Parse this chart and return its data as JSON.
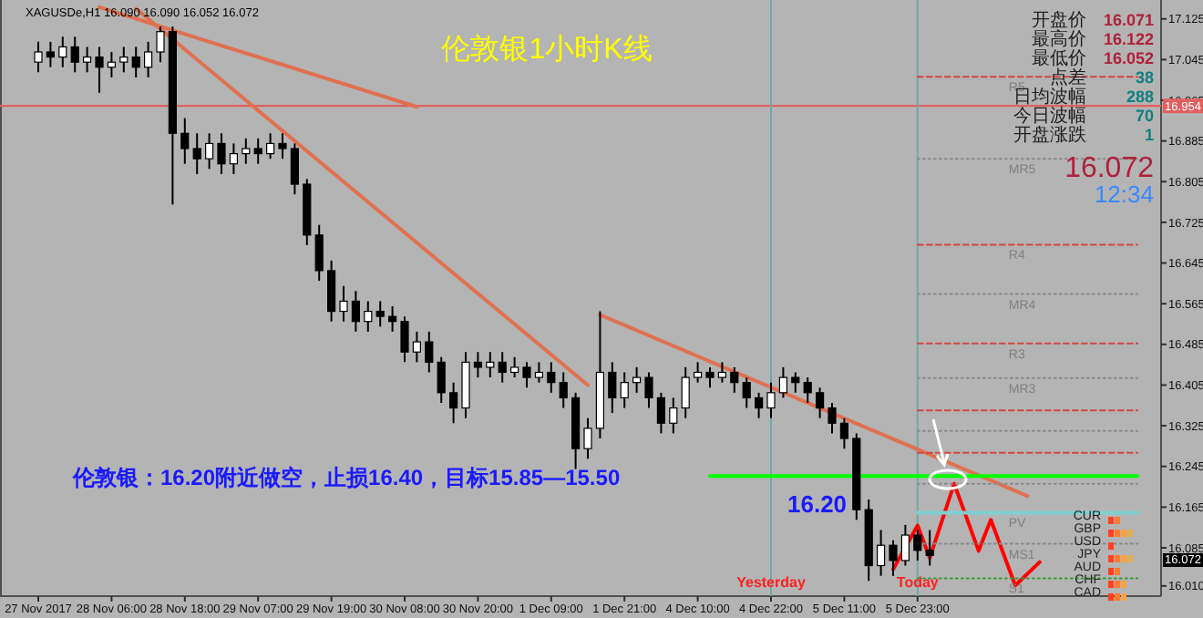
{
  "chart_data": {
    "type": "candlestick",
    "title": "伦敦银1小时K线",
    "categories": [
      "27 Nov 2017",
      null,
      null,
      null,
      null,
      null,
      "28 Nov 06:00",
      null,
      null,
      null,
      null,
      null,
      "28 Nov 18:00",
      null,
      null,
      null,
      null,
      null,
      "29 Nov 07:00",
      null,
      null,
      null,
      null,
      null,
      "29 Nov 19:00",
      null,
      null,
      null,
      null,
      null,
      "30 Nov 08:00",
      null,
      null,
      null,
      null,
      null,
      "30 Nov 20:00",
      null,
      null,
      null,
      null,
      null,
      "1 Dec 09:00",
      null,
      null,
      null,
      null,
      null,
      "1 Dec 21:00",
      null,
      null,
      null,
      null,
      null,
      "4 Dec 10:00",
      null,
      null,
      null,
      null,
      null,
      "4 Dec 22:00",
      null,
      null,
      null,
      null,
      null,
      "5 Dec 11:00",
      null,
      null,
      null,
      null,
      null,
      "5 Dec 23:00",
      null,
      null,
      null,
      null,
      null,
      null,
      null,
      null,
      null,
      null,
      null,
      null,
      null,
      null,
      null,
      null,
      null,
      null
    ],
    "ohlc": [
      [
        17.04,
        17.08,
        17.02,
        17.06
      ],
      [
        17.06,
        17.08,
        17.03,
        17.05
      ],
      [
        17.05,
        17.09,
        17.03,
        17.07
      ],
      [
        17.07,
        17.09,
        17.02,
        17.04
      ],
      [
        17.04,
        17.07,
        17.02,
        17.05
      ],
      [
        17.05,
        17.07,
        16.98,
        17.03
      ],
      [
        17.03,
        17.06,
        17.01,
        17.04
      ],
      [
        17.04,
        17.07,
        17.02,
        17.05
      ],
      [
        17.05,
        17.07,
        17.01,
        17.03
      ],
      [
        17.03,
        17.08,
        17.01,
        17.06
      ],
      [
        17.06,
        17.11,
        17.04,
        17.1
      ],
      [
        17.1,
        17.11,
        16.76,
        16.9
      ],
      [
        16.9,
        16.93,
        16.84,
        16.87
      ],
      [
        16.87,
        16.9,
        16.82,
        16.85
      ],
      [
        16.85,
        16.9,
        16.83,
        16.88
      ],
      [
        16.88,
        16.9,
        16.82,
        16.84
      ],
      [
        16.84,
        16.88,
        16.82,
        16.86
      ],
      [
        16.86,
        16.89,
        16.84,
        16.87
      ],
      [
        16.87,
        16.89,
        16.84,
        16.86
      ],
      [
        16.86,
        16.9,
        16.85,
        16.88
      ],
      [
        16.88,
        16.9,
        16.85,
        16.87
      ],
      [
        16.87,
        16.88,
        16.78,
        16.8
      ],
      [
        16.8,
        16.81,
        16.68,
        16.7
      ],
      [
        16.7,
        16.72,
        16.61,
        16.63
      ],
      [
        16.63,
        16.65,
        16.53,
        16.55
      ],
      [
        16.55,
        16.6,
        16.53,
        16.57
      ],
      [
        16.57,
        16.59,
        16.51,
        16.53
      ],
      [
        16.53,
        16.57,
        16.51,
        16.55
      ],
      [
        16.55,
        16.57,
        16.52,
        16.54
      ],
      [
        16.54,
        16.56,
        16.51,
        16.53
      ],
      [
        16.53,
        16.54,
        16.45,
        16.47
      ],
      [
        16.47,
        16.51,
        16.45,
        16.49
      ],
      [
        16.49,
        16.51,
        16.43,
        16.45
      ],
      [
        16.45,
        16.46,
        16.37,
        16.39
      ],
      [
        16.39,
        16.41,
        16.33,
        16.36
      ],
      [
        16.36,
        16.47,
        16.34,
        16.45
      ],
      [
        16.45,
        16.47,
        16.42,
        16.44
      ],
      [
        16.44,
        16.47,
        16.42,
        16.45
      ],
      [
        16.45,
        16.47,
        16.41,
        16.43
      ],
      [
        16.43,
        16.46,
        16.42,
        16.44
      ],
      [
        16.44,
        16.45,
        16.4,
        16.42
      ],
      [
        16.42,
        16.45,
        16.41,
        16.43
      ],
      [
        16.43,
        16.45,
        16.39,
        16.41
      ],
      [
        16.41,
        16.43,
        16.36,
        16.38
      ],
      [
        16.38,
        16.39,
        16.24,
        16.28
      ],
      [
        16.28,
        16.34,
        16.26,
        16.32
      ],
      [
        16.32,
        16.55,
        16.3,
        16.43
      ],
      [
        16.43,
        16.45,
        16.35,
        16.38
      ],
      [
        16.38,
        16.43,
        16.36,
        16.41
      ],
      [
        16.41,
        16.44,
        16.39,
        16.42
      ],
      [
        16.42,
        16.43,
        16.36,
        16.38
      ],
      [
        16.38,
        16.39,
        16.31,
        16.33
      ],
      [
        16.33,
        16.38,
        16.31,
        16.36
      ],
      [
        16.36,
        16.44,
        16.34,
        16.42
      ],
      [
        16.42,
        16.45,
        16.41,
        16.43
      ],
      [
        16.43,
        16.44,
        16.4,
        16.42
      ],
      [
        16.42,
        16.45,
        16.41,
        16.43
      ],
      [
        16.43,
        16.44,
        16.39,
        16.41
      ],
      [
        16.41,
        16.42,
        16.36,
        16.38
      ],
      [
        16.38,
        16.39,
        16.34,
        16.36
      ],
      [
        16.36,
        16.41,
        16.34,
        16.39
      ],
      [
        16.39,
        16.44,
        16.38,
        16.42
      ],
      [
        16.42,
        16.43,
        16.39,
        16.41
      ],
      [
        16.41,
        16.42,
        16.37,
        16.39
      ],
      [
        16.39,
        16.4,
        16.34,
        16.36
      ],
      [
        16.36,
        16.37,
        16.31,
        16.33
      ],
      [
        16.33,
        16.34,
        16.28,
        16.3
      ],
      [
        16.3,
        16.31,
        16.14,
        16.16
      ],
      [
        16.16,
        16.18,
        16.02,
        16.05
      ],
      [
        16.05,
        16.12,
        16.03,
        16.09
      ],
      [
        16.09,
        16.1,
        16.03,
        16.06
      ],
      [
        16.06,
        16.13,
        16.05,
        16.11
      ],
      [
        16.11,
        16.12,
        16.06,
        16.08
      ],
      [
        16.08,
        16.12,
        16.05,
        16.07
      ],
      null,
      null,
      null,
      null,
      null,
      null,
      null,
      null,
      null,
      null,
      null,
      null,
      null,
      null,
      null,
      null,
      null
    ],
    "series": [
      {
        "type": "line",
        "color": "#e07050",
        "line_style": "solid",
        "values": [
          null,
          null,
          null,
          null,
          null,
          17.148,
          null,
          null,
          null,
          null,
          null,
          null,
          null,
          null,
          null,
          null,
          null,
          null,
          null,
          null,
          null,
          null,
          null,
          null,
          null,
          null,
          null,
          null,
          null,
          null,
          null,
          16.952,
          null,
          null,
          null,
          null,
          null,
          null,
          null,
          null,
          null,
          null,
          null,
          null,
          null,
          null,
          null,
          null,
          null,
          null,
          null,
          null,
          null,
          null,
          null,
          null,
          null,
          null,
          null,
          null,
          null,
          null,
          null,
          null,
          null,
          null,
          null,
          null,
          null,
          null,
          null,
          null,
          null,
          null,
          null,
          null,
          null,
          null,
          null,
          null,
          null,
          null,
          null,
          null,
          null,
          null,
          null,
          null,
          null,
          null,
          null
        ]
      },
      {
        "type": "line",
        "color": "#e07050",
        "line_style": "solid",
        "values": [
          null,
          null,
          null,
          null,
          null,
          null,
          null,
          null,
          17.145,
          null,
          null,
          null,
          null,
          null,
          null,
          null,
          null,
          null,
          null,
          null,
          null,
          null,
          null,
          null,
          null,
          null,
          null,
          null,
          null,
          null,
          null,
          null,
          null,
          null,
          null,
          null,
          null,
          null,
          null,
          null,
          null,
          null,
          null,
          null,
          null,
          16.405,
          null,
          null,
          null,
          null,
          null,
          null,
          null,
          null,
          null,
          null,
          null,
          null,
          null,
          null,
          null,
          null,
          null,
          null,
          null,
          null,
          null,
          null,
          null,
          null,
          null,
          null,
          null,
          null,
          null,
          null,
          null,
          null,
          null,
          null,
          null,
          null,
          null,
          null,
          null,
          null,
          null,
          null,
          null,
          null,
          null
        ]
      },
      {
        "type": "line",
        "color": "#e07050",
        "line_style": "solid",
        "values": [
          null,
          null,
          null,
          null,
          null,
          null,
          null,
          null,
          null,
          null,
          null,
          null,
          null,
          null,
          null,
          null,
          null,
          null,
          null,
          null,
          null,
          null,
          null,
          null,
          null,
          null,
          null,
          null,
          null,
          null,
          null,
          null,
          null,
          null,
          null,
          null,
          null,
          null,
          null,
          null,
          null,
          null,
          null,
          null,
          null,
          null,
          16.543,
          null,
          null,
          null,
          null,
          null,
          null,
          null,
          null,
          null,
          null,
          null,
          null,
          null,
          null,
          null,
          null,
          null,
          null,
          null,
          null,
          null,
          null,
          null,
          null,
          null,
          null,
          null,
          null,
          null,
          null,
          null,
          null,
          null,
          null,
          16.187,
          null,
          null,
          null,
          null,
          null,
          null,
          null,
          null,
          null
        ]
      },
      {
        "type": "line",
        "color": "#00ff00",
        "line_style": "solid",
        "values": [
          null,
          null,
          null,
          null,
          null,
          null,
          null,
          null,
          null,
          null,
          null,
          null,
          null,
          null,
          null,
          null,
          null,
          null,
          null,
          null,
          null,
          null,
          null,
          null,
          null,
          null,
          null,
          null,
          null,
          null,
          null,
          null,
          null,
          null,
          null,
          null,
          null,
          null,
          null,
          null,
          null,
          null,
          null,
          null,
          null,
          null,
          null,
          null,
          null,
          null,
          null,
          null,
          null,
          null,
          null,
          16.226,
          null,
          null,
          null,
          null,
          null,
          null,
          null,
          null,
          null,
          null,
          null,
          null,
          null,
          null,
          null,
          null,
          null,
          null,
          null,
          null,
          null,
          null,
          null,
          null,
          null,
          null,
          null,
          null,
          null,
          null,
          null,
          null,
          null,
          null,
          16.226
        ]
      },
      {
        "type": "line",
        "color": "#ff0000",
        "line_style": "solid",
        "values": [
          null,
          null,
          null,
          null,
          null,
          null,
          null,
          null,
          null,
          null,
          null,
          null,
          null,
          null,
          null,
          null,
          null,
          null,
          null,
          null,
          null,
          null,
          null,
          null,
          null,
          null,
          null,
          null,
          null,
          null,
          null,
          null,
          null,
          null,
          null,
          null,
          null,
          null,
          null,
          null,
          null,
          null,
          null,
          null,
          null,
          null,
          null,
          null,
          null,
          null,
          null,
          null,
          null,
          null,
          null,
          null,
          null,
          null,
          null,
          null,
          null,
          null,
          null,
          null,
          null,
          null,
          null,
          null,
          null,
          null,
          16.043,
          null,
          16.129,
          16.065,
          null,
          16.211,
          null,
          16.079,
          16.14,
          null,
          16.011,
          null,
          16.057,
          null,
          null,
          null,
          null,
          null,
          null,
          null,
          null
        ]
      },
      {
        "type": "line",
        "name": "R5",
        "color": "#d04848",
        "line_style": "dashed",
        "values": [
          null,
          null,
          null,
          null,
          null,
          null,
          null,
          null,
          null,
          null,
          null,
          null,
          null,
          null,
          null,
          null,
          null,
          null,
          null,
          null,
          null,
          null,
          null,
          null,
          null,
          null,
          null,
          null,
          null,
          null,
          null,
          null,
          null,
          null,
          null,
          null,
          null,
          null,
          null,
          null,
          null,
          null,
          null,
          null,
          null,
          null,
          null,
          null,
          null,
          null,
          null,
          null,
          null,
          null,
          null,
          null,
          null,
          null,
          null,
          null,
          null,
          null,
          null,
          null,
          null,
          null,
          null,
          null,
          null,
          null,
          null,
          null,
          17.011,
          null,
          null,
          null,
          null,
          null,
          null,
          null,
          null,
          null,
          null,
          null,
          null,
          null,
          null,
          null,
          null,
          null,
          17.011
        ]
      },
      {
        "type": "line",
        "name": "MR5",
        "color": "#8a8a8a",
        "line_style": "dotted",
        "values": [
          null,
          null,
          null,
          null,
          null,
          null,
          null,
          null,
          null,
          null,
          null,
          null,
          null,
          null,
          null,
          null,
          null,
          null,
          null,
          null,
          null,
          null,
          null,
          null,
          null,
          null,
          null,
          null,
          null,
          null,
          null,
          null,
          null,
          null,
          null,
          null,
          null,
          null,
          null,
          null,
          null,
          null,
          null,
          null,
          null,
          null,
          null,
          null,
          null,
          null,
          null,
          null,
          null,
          null,
          null,
          null,
          null,
          null,
          null,
          null,
          null,
          null,
          null,
          null,
          null,
          null,
          null,
          null,
          null,
          null,
          null,
          null,
          16.85,
          null,
          null,
          null,
          null,
          null,
          null,
          null,
          null,
          null,
          null,
          null,
          null,
          null,
          null,
          null,
          null,
          null,
          16.85
        ]
      },
      {
        "type": "line",
        "name": "R4",
        "color": "#d04848",
        "line_style": "dashed",
        "values": [
          null,
          null,
          null,
          null,
          null,
          null,
          null,
          null,
          null,
          null,
          null,
          null,
          null,
          null,
          null,
          null,
          null,
          null,
          null,
          null,
          null,
          null,
          null,
          null,
          null,
          null,
          null,
          null,
          null,
          null,
          null,
          null,
          null,
          null,
          null,
          null,
          null,
          null,
          null,
          null,
          null,
          null,
          null,
          null,
          null,
          null,
          null,
          null,
          null,
          null,
          null,
          null,
          null,
          null,
          null,
          null,
          null,
          null,
          null,
          null,
          null,
          null,
          null,
          null,
          null,
          null,
          null,
          null,
          null,
          null,
          null,
          null,
          16.681,
          null,
          null,
          null,
          null,
          null,
          null,
          null,
          null,
          null,
          null,
          null,
          null,
          null,
          null,
          null,
          null,
          null,
          16.681
        ]
      },
      {
        "type": "line",
        "name": "MR4",
        "color": "#8a8a8a",
        "line_style": "dotted",
        "values": [
          null,
          null,
          null,
          null,
          null,
          null,
          null,
          null,
          null,
          null,
          null,
          null,
          null,
          null,
          null,
          null,
          null,
          null,
          null,
          null,
          null,
          null,
          null,
          null,
          null,
          null,
          null,
          null,
          null,
          null,
          null,
          null,
          null,
          null,
          null,
          null,
          null,
          null,
          null,
          null,
          null,
          null,
          null,
          null,
          null,
          null,
          null,
          null,
          null,
          null,
          null,
          null,
          null,
          null,
          null,
          null,
          null,
          null,
          null,
          null,
          null,
          null,
          null,
          null,
          null,
          null,
          null,
          null,
          null,
          null,
          null,
          null,
          16.584,
          null,
          null,
          null,
          null,
          null,
          null,
          null,
          null,
          null,
          null,
          null,
          null,
          null,
          null,
          null,
          null,
          null,
          16.584
        ]
      },
      {
        "type": "line",
        "name": "R3",
        "color": "#d04848",
        "line_style": "dashed",
        "values": [
          null,
          null,
          null,
          null,
          null,
          null,
          null,
          null,
          null,
          null,
          null,
          null,
          null,
          null,
          null,
          null,
          null,
          null,
          null,
          null,
          null,
          null,
          null,
          null,
          null,
          null,
          null,
          null,
          null,
          null,
          null,
          null,
          null,
          null,
          null,
          null,
          null,
          null,
          null,
          null,
          null,
          null,
          null,
          null,
          null,
          null,
          null,
          null,
          null,
          null,
          null,
          null,
          null,
          null,
          null,
          null,
          null,
          null,
          null,
          null,
          null,
          null,
          null,
          null,
          null,
          null,
          null,
          null,
          null,
          null,
          null,
          null,
          16.487,
          null,
          null,
          null,
          null,
          null,
          null,
          null,
          null,
          null,
          null,
          null,
          null,
          null,
          null,
          null,
          null,
          null,
          16.487
        ]
      },
      {
        "type": "line",
        "name": "MR3",
        "color": "#8a8a8a",
        "line_style": "dotted",
        "values": [
          null,
          null,
          null,
          null,
          null,
          null,
          null,
          null,
          null,
          null,
          null,
          null,
          null,
          null,
          null,
          null,
          null,
          null,
          null,
          null,
          null,
          null,
          null,
          null,
          null,
          null,
          null,
          null,
          null,
          null,
          null,
          null,
          null,
          null,
          null,
          null,
          null,
          null,
          null,
          null,
          null,
          null,
          null,
          null,
          null,
          null,
          null,
          null,
          null,
          null,
          null,
          null,
          null,
          null,
          null,
          null,
          null,
          null,
          null,
          null,
          null,
          null,
          null,
          null,
          null,
          null,
          null,
          null,
          null,
          null,
          null,
          null,
          16.419,
          null,
          null,
          null,
          null,
          null,
          null,
          null,
          null,
          null,
          null,
          null,
          null,
          null,
          null,
          null,
          null,
          null,
          16.419
        ]
      },
      {
        "type": "line",
        "color": "#d04848",
        "line_style": "dashed",
        "values": [
          null,
          null,
          null,
          null,
          null,
          null,
          null,
          null,
          null,
          null,
          null,
          null,
          null,
          null,
          null,
          null,
          null,
          null,
          null,
          null,
          null,
          null,
          null,
          null,
          null,
          null,
          null,
          null,
          null,
          null,
          null,
          null,
          null,
          null,
          null,
          null,
          null,
          null,
          null,
          null,
          null,
          null,
          null,
          null,
          null,
          null,
          null,
          null,
          null,
          null,
          null,
          null,
          null,
          null,
          null,
          null,
          null,
          null,
          null,
          null,
          null,
          null,
          null,
          null,
          null,
          null,
          null,
          null,
          null,
          null,
          null,
          null,
          16.355,
          null,
          null,
          null,
          null,
          null,
          null,
          null,
          null,
          null,
          null,
          null,
          null,
          null,
          null,
          null,
          null,
          null,
          16.355
        ]
      },
      {
        "type": "line",
        "color": "#8a8a8a",
        "line_style": "dotted",
        "values": [
          null,
          null,
          null,
          null,
          null,
          null,
          null,
          null,
          null,
          null,
          null,
          null,
          null,
          null,
          null,
          null,
          null,
          null,
          null,
          null,
          null,
          null,
          null,
          null,
          null,
          null,
          null,
          null,
          null,
          null,
          null,
          null,
          null,
          null,
          null,
          null,
          null,
          null,
          null,
          null,
          null,
          null,
          null,
          null,
          null,
          null,
          null,
          null,
          null,
          null,
          null,
          null,
          null,
          null,
          null,
          null,
          null,
          null,
          null,
          null,
          null,
          null,
          null,
          null,
          null,
          null,
          null,
          null,
          null,
          null,
          null,
          null,
          16.315,
          null,
          null,
          null,
          null,
          null,
          null,
          null,
          null,
          null,
          null,
          null,
          null,
          null,
          null,
          null,
          null,
          null,
          16.315
        ]
      },
      {
        "type": "line",
        "color": "#d04848",
        "line_style": "dashed",
        "values": [
          null,
          null,
          null,
          null,
          null,
          null,
          null,
          null,
          null,
          null,
          null,
          null,
          null,
          null,
          null,
          null,
          null,
          null,
          null,
          null,
          null,
          null,
          null,
          null,
          null,
          null,
          null,
          null,
          null,
          null,
          null,
          null,
          null,
          null,
          null,
          null,
          null,
          null,
          null,
          null,
          null,
          null,
          null,
          null,
          null,
          null,
          null,
          null,
          null,
          null,
          null,
          null,
          null,
          null,
          null,
          null,
          null,
          null,
          null,
          null,
          null,
          null,
          null,
          null,
          null,
          null,
          null,
          null,
          null,
          null,
          null,
          null,
          16.272,
          null,
          null,
          null,
          null,
          null,
          null,
          null,
          null,
          null,
          null,
          null,
          null,
          null,
          null,
          null,
          null,
          null,
          16.272
        ]
      },
      {
        "type": "line",
        "color": "#8a8a8a",
        "line_style": "dotted",
        "values": [
          null,
          null,
          null,
          null,
          null,
          null,
          null,
          null,
          null,
          null,
          null,
          null,
          null,
          null,
          null,
          null,
          null,
          null,
          null,
          null,
          null,
          null,
          null,
          null,
          null,
          null,
          null,
          null,
          null,
          null,
          null,
          null,
          null,
          null,
          null,
          null,
          null,
          null,
          null,
          null,
          null,
          null,
          null,
          null,
          null,
          null,
          null,
          null,
          null,
          null,
          null,
          null,
          null,
          null,
          null,
          null,
          null,
          null,
          null,
          null,
          null,
          null,
          null,
          null,
          null,
          null,
          null,
          null,
          null,
          null,
          null,
          null,
          16.211,
          null,
          null,
          null,
          null,
          null,
          null,
          null,
          null,
          null,
          null,
          null,
          null,
          null,
          null,
          null,
          null,
          null,
          16.211
        ]
      },
      {
        "type": "line",
        "name": "PV",
        "color": "#7fd0d0",
        "line_style": "solid",
        "values": [
          null,
          null,
          null,
          null,
          null,
          null,
          null,
          null,
          null,
          null,
          null,
          null,
          null,
          null,
          null,
          null,
          null,
          null,
          null,
          null,
          null,
          null,
          null,
          null,
          null,
          null,
          null,
          null,
          null,
          null,
          null,
          null,
          null,
          null,
          null,
          null,
          null,
          null,
          null,
          null,
          null,
          null,
          null,
          null,
          null,
          null,
          null,
          null,
          null,
          null,
          null,
          null,
          null,
          null,
          null,
          null,
          null,
          null,
          null,
          null,
          null,
          null,
          null,
          null,
          null,
          null,
          null,
          null,
          null,
          null,
          null,
          null,
          16.154,
          null,
          null,
          null,
          null,
          null,
          null,
          null,
          null,
          null,
          null,
          null,
          null,
          null,
          null,
          null,
          null,
          null,
          16.154
        ]
      },
      {
        "type": "line",
        "name": "MS1",
        "color": "#8a8a8a",
        "line_style": "dotted",
        "values": [
          null,
          null,
          null,
          null,
          null,
          null,
          null,
          null,
          null,
          null,
          null,
          null,
          null,
          null,
          null,
          null,
          null,
          null,
          null,
          null,
          null,
          null,
          null,
          null,
          null,
          null,
          null,
          null,
          null,
          null,
          null,
          null,
          null,
          null,
          null,
          null,
          null,
          null,
          null,
          null,
          null,
          null,
          null,
          null,
          null,
          null,
          null,
          null,
          null,
          null,
          null,
          null,
          null,
          null,
          null,
          null,
          null,
          null,
          null,
          null,
          null,
          null,
          null,
          null,
          null,
          null,
          null,
          null,
          null,
          null,
          null,
          null,
          16.093,
          null,
          null,
          null,
          null,
          null,
          null,
          null,
          null,
          null,
          null,
          null,
          null,
          null,
          null,
          null,
          null,
          null,
          16.093
        ]
      },
      {
        "type": "line",
        "name": "S1",
        "color": "#3a9a3a",
        "line_style": "dotted",
        "values": [
          null,
          null,
          null,
          null,
          null,
          null,
          null,
          null,
          null,
          null,
          null,
          null,
          null,
          null,
          null,
          null,
          null,
          null,
          null,
          null,
          null,
          null,
          null,
          null,
          null,
          null,
          null,
          null,
          null,
          null,
          null,
          null,
          null,
          null,
          null,
          null,
          null,
          null,
          null,
          null,
          null,
          null,
          null,
          null,
          null,
          null,
          null,
          null,
          null,
          null,
          null,
          null,
          null,
          null,
          null,
          null,
          null,
          null,
          null,
          null,
          null,
          null,
          null,
          null,
          null,
          null,
          null,
          null,
          null,
          null,
          null,
          null,
          16.025,
          null,
          null,
          null,
          null,
          null,
          null,
          null,
          null,
          null,
          null,
          null,
          null,
          null,
          null,
          null,
          null,
          null,
          16.025
        ]
      }
    ],
    "ylim": [
      15.99,
      17.155
    ],
    "yticks": [
      17.125,
      17.045,
      16.965,
      16.885,
      16.805,
      16.725,
      16.645,
      16.565,
      16.485,
      16.405,
      16.325,
      16.245,
      16.165,
      16.085,
      {
        "value": 16.01,
        "label": "16.010"
      }
    ],
    "ref_lines": [
      {
        "axis": "y",
        "value": 16.954,
        "label": "16.954",
        "color": "#e06060"
      },
      {
        "axis": "x",
        "value": "4 Dec 22:00",
        "label": "Yesterday",
        "color": "#6fa8a8"
      },
      {
        "axis": "x",
        "value": "5 Dec 23:00",
        "label": "Today",
        "color": "#6fa8a8"
      }
    ],
    "annotations": [
      "XAGUSDe,H1  16.090 16.090 16.052 16.072",
      "伦敦银：16.20附近做空，止损16.40，目标15.85—15.50",
      "16.20",
      "开盘价",
      "最高价",
      "最低价",
      "点差",
      "日均波幅",
      "今日波幅",
      "开盘涨跌",
      "16.071",
      "16.122",
      "16.052",
      "38",
      "288",
      "70",
      "1",
      "16.072",
      "12:34",
      "16.072",
      "CUR",
      "GBP",
      "USD",
      "JPY",
      "AUD",
      "CHF",
      "CAD"
    ]
  }
}
